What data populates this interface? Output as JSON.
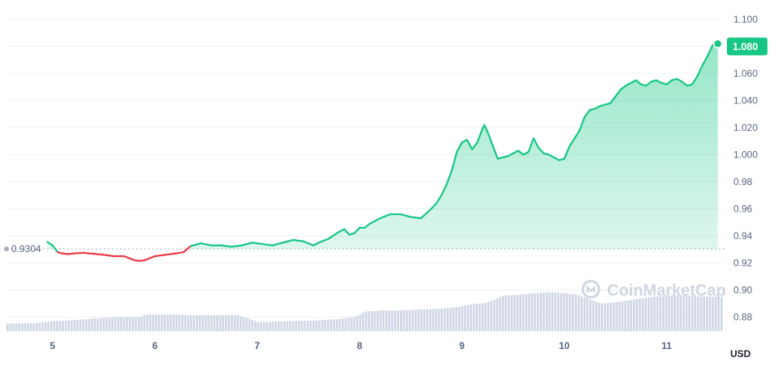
{
  "chart_data": {
    "type": "area",
    "title": "",
    "xlabel": "",
    "ylabel": "",
    "unit_label": "USD",
    "watermark": "CoinMarketCap",
    "reference_line": {
      "value": 0.9304,
      "label": "0.9304"
    },
    "current_price": {
      "value": 1.08,
      "label": "1.080"
    },
    "ylim": [
      0.87,
      1.105
    ],
    "y_ticks": [
      "1.100",
      "1.080",
      "1.060",
      "1.040",
      "1.020",
      "1.000",
      "0.98",
      "0.96",
      "0.94",
      "0.92",
      "0.90",
      "0.88"
    ],
    "y_tick_values": [
      1.1,
      1.08,
      1.06,
      1.04,
      1.02,
      1.0,
      0.98,
      0.96,
      0.94,
      0.92,
      0.9,
      0.88
    ],
    "xlim": [
      4.55,
      11.55
    ],
    "x_ticks": [
      "5",
      "6",
      "7",
      "8",
      "9",
      "10",
      "11"
    ],
    "x_tick_values": [
      5,
      6,
      7,
      8,
      9,
      10,
      11
    ],
    "grid": true,
    "colors": {
      "up": "#16c784",
      "down": "#ea3943",
      "volume": "#cfd6e4",
      "grid": "#eff2f5",
      "ref": "#a6b0c3"
    },
    "series": [
      {
        "x": [
          4.95,
          5.0,
          5.05,
          5.1,
          5.15,
          5.2,
          5.3,
          5.4,
          5.5,
          5.6,
          5.7,
          5.75,
          5.8,
          5.85,
          5.9,
          6.0,
          6.1,
          6.2,
          6.28,
          6.35,
          6.45,
          6.55,
          6.65,
          6.75,
          6.85,
          6.95,
          7.05,
          7.15,
          7.25,
          7.35,
          7.45,
          7.55,
          7.6,
          7.7,
          7.8,
          7.85,
          7.9,
          7.95,
          8.0,
          8.05,
          8.1,
          8.15,
          8.2,
          8.3,
          8.4,
          8.5,
          8.6,
          8.7,
          8.75,
          8.8,
          8.85,
          8.9,
          8.95,
          9.0,
          9.05,
          9.1,
          9.15,
          9.2,
          9.22,
          9.25,
          9.3,
          9.35,
          9.4,
          9.45,
          9.5,
          9.55,
          9.6,
          9.65,
          9.7,
          9.75,
          9.8,
          9.85,
          9.9,
          9.95,
          10.0,
          10.05,
          10.1,
          10.15,
          10.2,
          10.25,
          10.3,
          10.35,
          10.4,
          10.45,
          10.5,
          10.55,
          10.6,
          10.65,
          10.7,
          10.75,
          10.8,
          10.85,
          10.9,
          10.95,
          11.0,
          11.05,
          11.1,
          11.15,
          11.2,
          11.25,
          11.3,
          11.35,
          11.4,
          11.45,
          11.5
        ],
        "values": [
          0.9355,
          0.933,
          0.928,
          0.927,
          0.9265,
          0.927,
          0.9275,
          0.9268,
          0.926,
          0.925,
          0.925,
          0.9235,
          0.922,
          0.9215,
          0.922,
          0.925,
          0.926,
          0.927,
          0.928,
          0.9325,
          0.9345,
          0.933,
          0.933,
          0.932,
          0.933,
          0.935,
          0.934,
          0.933,
          0.935,
          0.937,
          0.936,
          0.933,
          0.935,
          0.938,
          0.943,
          0.945,
          0.941,
          0.942,
          0.946,
          0.946,
          0.949,
          0.951,
          0.953,
          0.956,
          0.956,
          0.954,
          0.953,
          0.96,
          0.964,
          0.97,
          0.978,
          0.988,
          1.002,
          1.009,
          1.011,
          1.004,
          1.009,
          1.019,
          1.022,
          1.017,
          1.007,
          0.997,
          0.998,
          0.999,
          1.001,
          1.003,
          1.0,
          1.002,
          1.012,
          1.005,
          1.001,
          1.0,
          0.998,
          0.996,
          0.997,
          1.006,
          1.012,
          1.018,
          1.028,
          1.033,
          1.034,
          1.036,
          1.037,
          1.038,
          1.043,
          1.048,
          1.051,
          1.053,
          1.055,
          1.052,
          1.051,
          1.054,
          1.055,
          1.053,
          1.052,
          1.055,
          1.056,
          1.054,
          1.051,
          1.052,
          1.058,
          1.066,
          1.073,
          1.081,
          1.082
        ]
      }
    ],
    "volume": {
      "x": [
        4.55,
        4.8,
        5.0,
        5.3,
        5.6,
        5.85,
        5.9,
        6.2,
        6.35,
        6.55,
        6.8,
        6.9,
        7.0,
        7.3,
        7.6,
        7.8,
        7.95,
        8.05,
        8.2,
        8.5,
        8.8,
        8.95,
        9.05,
        9.2,
        9.3,
        9.4,
        9.7,
        9.9,
        10.1,
        10.2,
        10.35,
        10.45,
        10.6,
        10.8,
        11.0,
        11.2,
        11.4,
        11.55
      ],
      "values": [
        0.06,
        0.065,
        0.085,
        0.095,
        0.11,
        0.115,
        0.14,
        0.14,
        0.13,
        0.125,
        0.125,
        0.105,
        0.075,
        0.085,
        0.085,
        0.095,
        0.115,
        0.16,
        0.175,
        0.175,
        0.175,
        0.19,
        0.21,
        0.23,
        0.26,
        0.3,
        0.305,
        0.3,
        0.29,
        0.27,
        0.23,
        0.24,
        0.255,
        0.27,
        0.275,
        0.28,
        0.285,
        0.29
      ]
    }
  }
}
